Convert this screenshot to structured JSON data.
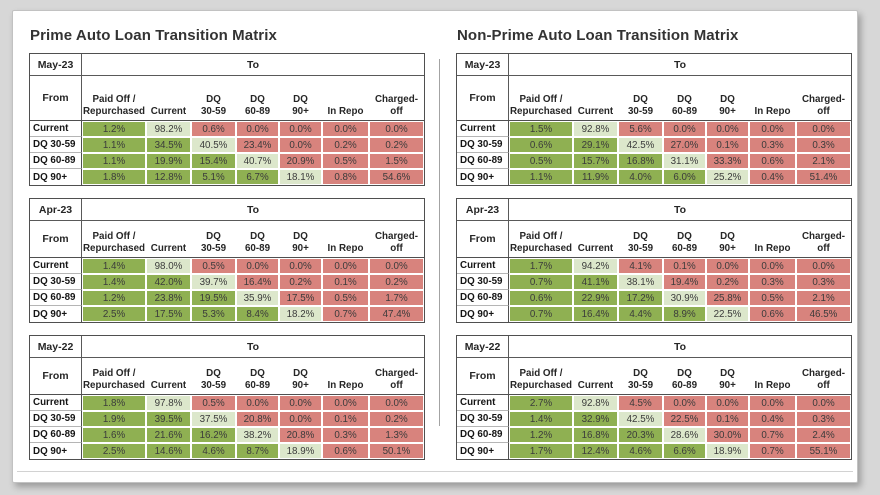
{
  "page": {
    "background": "#d7d7d7",
    "panel_background": "#ffffff"
  },
  "colors": {
    "improve_green": "#8fb052",
    "same_state_green": "#dce7cb",
    "worsen_red": "#d8837d"
  },
  "column_headers": [
    [
      "Paid Off /",
      "Repurchased"
    ],
    [
      "Current"
    ],
    [
      "DQ",
      "30-59"
    ],
    [
      "DQ",
      "60-89"
    ],
    [
      "DQ",
      "90+"
    ],
    [
      "In Repo"
    ],
    [
      "Charged-",
      "off"
    ]
  ],
  "panels": [
    {
      "title": "Prime Auto Loan Transition Matrix",
      "tables": [
        {
          "month": "May-23",
          "to_label": "To",
          "from_label": "From",
          "rows": [
            {
              "label": "Current",
              "values": [
                "1.2%",
                "98.2%",
                "0.6%",
                "0.0%",
                "0.0%",
                "0.0%",
                "0.0%"
              ]
            },
            {
              "label": "DQ 30-59",
              "values": [
                "1.1%",
                "34.5%",
                "40.5%",
                "23.4%",
                "0.0%",
                "0.2%",
                "0.2%"
              ]
            },
            {
              "label": "DQ 60-89",
              "values": [
                "1.1%",
                "19.9%",
                "15.4%",
                "40.7%",
                "20.9%",
                "0.5%",
                "1.5%"
              ]
            },
            {
              "label": "DQ 90+",
              "values": [
                "1.8%",
                "12.8%",
                "5.1%",
                "6.7%",
                "18.1%",
                "0.8%",
                "54.6%"
              ]
            }
          ]
        },
        {
          "month": "Apr-23",
          "to_label": "To",
          "from_label": "From",
          "rows": [
            {
              "label": "Current",
              "values": [
                "1.4%",
                "98.0%",
                "0.5%",
                "0.0%",
                "0.0%",
                "0.0%",
                "0.0%"
              ]
            },
            {
              "label": "DQ 30-59",
              "values": [
                "1.4%",
                "42.0%",
                "39.7%",
                "16.4%",
                "0.2%",
                "0.1%",
                "0.2%"
              ]
            },
            {
              "label": "DQ 60-89",
              "values": [
                "1.2%",
                "23.8%",
                "19.5%",
                "35.9%",
                "17.5%",
                "0.5%",
                "1.7%"
              ]
            },
            {
              "label": "DQ 90+",
              "values": [
                "2.5%",
                "17.5%",
                "5.3%",
                "8.4%",
                "18.2%",
                "0.7%",
                "47.4%"
              ]
            }
          ]
        },
        {
          "month": "May-22",
          "to_label": "To",
          "from_label": "From",
          "rows": [
            {
              "label": "Current",
              "values": [
                "1.8%",
                "97.8%",
                "0.5%",
                "0.0%",
                "0.0%",
                "0.0%",
                "0.0%"
              ]
            },
            {
              "label": "DQ 30-59",
              "values": [
                "1.9%",
                "39.5%",
                "37.5%",
                "20.8%",
                "0.0%",
                "0.1%",
                "0.2%"
              ]
            },
            {
              "label": "DQ 60-89",
              "values": [
                "1.6%",
                "21.6%",
                "16.2%",
                "38.2%",
                "20.8%",
                "0.3%",
                "1.3%"
              ]
            },
            {
              "label": "DQ 90+",
              "values": [
                "2.5%",
                "14.6%",
                "4.6%",
                "8.7%",
                "18.9%",
                "0.6%",
                "50.1%"
              ]
            }
          ]
        }
      ]
    },
    {
      "title": "Non-Prime Auto Loan Transition Matrix",
      "tables": [
        {
          "month": "May-23",
          "to_label": "To",
          "from_label": "From",
          "rows": [
            {
              "label": "Current",
              "values": [
                "1.5%",
                "92.8%",
                "5.6%",
                "0.0%",
                "0.0%",
                "0.0%",
                "0.0%"
              ]
            },
            {
              "label": "DQ 30-59",
              "values": [
                "0.6%",
                "29.1%",
                "42.5%",
                "27.0%",
                "0.1%",
                "0.3%",
                "0.3%"
              ]
            },
            {
              "label": "DQ 60-89",
              "values": [
                "0.5%",
                "15.7%",
                "16.8%",
                "31.1%",
                "33.3%",
                "0.6%",
                "2.1%"
              ]
            },
            {
              "label": "DQ 90+",
              "values": [
                "1.1%",
                "11.9%",
                "4.0%",
                "6.0%",
                "25.2%",
                "0.4%",
                "51.4%"
              ]
            }
          ]
        },
        {
          "month": "Apr-23",
          "to_label": "To",
          "from_label": "From",
          "rows": [
            {
              "label": "Current",
              "values": [
                "1.7%",
                "94.2%",
                "4.1%",
                "0.1%",
                "0.0%",
                "0.0%",
                "0.0%"
              ]
            },
            {
              "label": "DQ 30-59",
              "values": [
                "0.7%",
                "41.1%",
                "38.1%",
                "19.4%",
                "0.2%",
                "0.3%",
                "0.3%"
              ]
            },
            {
              "label": "DQ 60-89",
              "values": [
                "0.6%",
                "22.9%",
                "17.2%",
                "30.9%",
                "25.8%",
                "0.5%",
                "2.1%"
              ]
            },
            {
              "label": "DQ 90+",
              "values": [
                "0.7%",
                "16.4%",
                "4.4%",
                "8.9%",
                "22.5%",
                "0.6%",
                "46.5%"
              ]
            }
          ]
        },
        {
          "month": "May-22",
          "to_label": "To",
          "from_label": "From",
          "rows": [
            {
              "label": "Current",
              "values": [
                "2.7%",
                "92.8%",
                "4.5%",
                "0.0%",
                "0.0%",
                "0.0%",
                "0.0%"
              ]
            },
            {
              "label": "DQ 30-59",
              "values": [
                "1.4%",
                "32.9%",
                "42.5%",
                "22.5%",
                "0.1%",
                "0.4%",
                "0.3%"
              ]
            },
            {
              "label": "DQ 60-89",
              "values": [
                "1.2%",
                "16.8%",
                "20.3%",
                "28.6%",
                "30.0%",
                "0.7%",
                "2.4%"
              ]
            },
            {
              "label": "DQ 90+",
              "values": [
                "1.7%",
                "12.4%",
                "4.6%",
                "6.6%",
                "18.9%",
                "0.7%",
                "55.1%"
              ]
            }
          ]
        }
      ]
    }
  ]
}
